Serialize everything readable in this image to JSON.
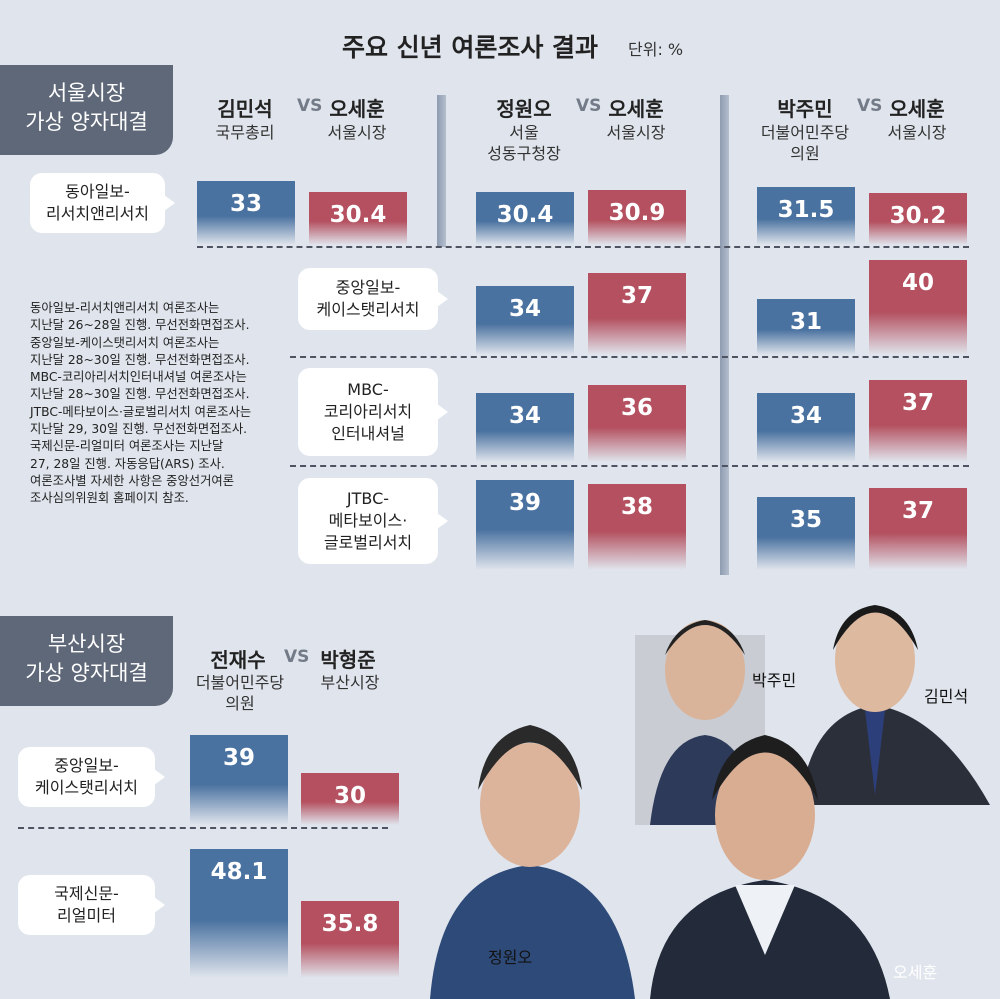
{
  "title": "주요 신년 여론조사 결과",
  "unit": "단위: %",
  "colors": {
    "challenger": "#4a72a0",
    "incumbent": "#b4505f",
    "background": "#e0e5ed",
    "tag": "#5f6879"
  },
  "vs_label": "VS",
  "seoul": {
    "tag": "서울시장\n가상 양자대결",
    "matchups": [
      {
        "a": {
          "name": "김민석",
          "title": "국무총리"
        },
        "b": {
          "name": "오세훈",
          "title": "서울시장"
        }
      },
      {
        "a": {
          "name": "정원오",
          "title": "서울\n성동구청장"
        },
        "b": {
          "name": "오세훈",
          "title": "서울시장"
        }
      },
      {
        "a": {
          "name": "박주민",
          "title": "더불어민주당\n의원"
        },
        "b": {
          "name": "오세훈",
          "title": "서울시장"
        }
      }
    ],
    "polls": [
      {
        "label": "동아일보-\n리서치앤리서치",
        "values": [
          [
            33,
            30.4
          ],
          [
            30.4,
            30.9
          ],
          [
            31.5,
            30.2
          ]
        ]
      },
      {
        "label": "중앙일보-\n케이스탯리서치",
        "values": [
          null,
          [
            34,
            37
          ],
          [
            31,
            40
          ]
        ]
      },
      {
        "label": "MBC-\n코리아리서치\n인터내셔널",
        "values": [
          null,
          [
            34,
            36
          ],
          [
            34,
            37
          ]
        ]
      },
      {
        "label": "JTBC-\n메타보이스·\n글로벌리서치",
        "values": [
          null,
          [
            39,
            38
          ],
          [
            35,
            37
          ]
        ]
      }
    ]
  },
  "notes": [
    "동아일보-리서치앤리서치 여론조사는",
    "지난달 26~28일 진행. 무선전화면접조사.",
    "중앙일보-케이스탯리서치 여론조사는",
    "지난달 28~30일 진행. 무선전화면접조사.",
    "MBC-코리아리서치인터내셔널 여론조사는",
    "지난달 28~30일 진행. 무선전화면접조사.",
    "JTBC-메타보이스·글로벌리서치 여론조사는",
    "지난달 29, 30일 진행. 무선전화면접조사.",
    "국제신문-리얼미터 여론조사는 지난달",
    "27, 28일 진행. 자동응답(ARS) 조사.",
    "여론조사별 자세한 사항은 중앙선거여론",
    "조사심의위원회 홈페이지 참조."
  ],
  "busan": {
    "tag": "부산시장\n가상 양자대결",
    "matchup": {
      "a": {
        "name": "전재수",
        "title": "더불어민주당\n의원"
      },
      "b": {
        "name": "박형준",
        "title": "부산시장"
      }
    },
    "polls": [
      {
        "label": "중앙일보-\n케이스탯리서치",
        "values": [
          39,
          30
        ]
      },
      {
        "label": "국제신문-\n리얼미터",
        "values": [
          48.1,
          35.8
        ]
      }
    ]
  },
  "photos": [
    "박주민",
    "김민석",
    "정원오",
    "오세훈"
  ],
  "chart_data": [
    {
      "type": "bar",
      "title": "주요 신년 여론조사 결과",
      "subtitle": "서울시장 가상 양자대결",
      "unit": "%",
      "categories": [
        "동아일보-리서치앤리서치",
        "중앙일보-케이스탯리서치",
        "MBC-코리아리서치인터내셔널",
        "JTBC-메타보이스·글로벌리서치"
      ],
      "series": [
        {
          "name": "김민석",
          "values": [
            33,
            null,
            null,
            null
          ]
        },
        {
          "name": "오세훈 (vs 김민석)",
          "values": [
            30.4,
            null,
            null,
            null
          ]
        },
        {
          "name": "정원오",
          "values": [
            30.4,
            34,
            34,
            39
          ]
        },
        {
          "name": "오세훈 (vs 정원오)",
          "values": [
            30.9,
            37,
            36,
            38
          ]
        },
        {
          "name": "박주민",
          "values": [
            31.5,
            31,
            34,
            35
          ]
        },
        {
          "name": "오세훈 (vs 박주민)",
          "values": [
            30.2,
            40,
            37,
            37
          ]
        }
      ]
    },
    {
      "type": "bar",
      "subtitle": "부산시장 가상 양자대결",
      "unit": "%",
      "categories": [
        "중앙일보-케이스탯리서치",
        "국제신문-리얼미터"
      ],
      "series": [
        {
          "name": "전재수",
          "values": [
            39,
            48.1
          ]
        },
        {
          "name": "박형준",
          "values": [
            30,
            35.8
          ]
        }
      ]
    }
  ]
}
